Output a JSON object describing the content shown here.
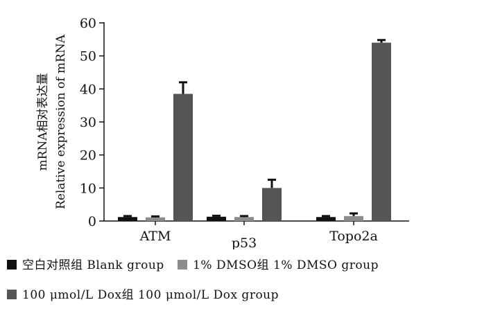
{
  "chart_data": {
    "type": "bar",
    "ylabel_lines": [
      "mRNA相对表达量",
      "Relative  expression  of  mRNA"
    ],
    "ylim": [
      0,
      60
    ],
    "yticks": [
      0,
      10,
      20,
      30,
      40,
      50,
      60
    ],
    "categories": [
      "ATM",
      "p53",
      "Topo2a"
    ],
    "series": [
      {
        "name": "空白对照组  Blank  group",
        "color": "#111111",
        "values": [
          1.2,
          1.3,
          1.2
        ],
        "errors": [
          0.3,
          0.3,
          0.3
        ]
      },
      {
        "name": "1%  DMSO组  1%  DMSO  group",
        "color": "#8c8c8c",
        "values": [
          1.1,
          1.2,
          1.5
        ],
        "errors": [
          0.3,
          0.3,
          0.8
        ]
      },
      {
        "name": "100  μmol/L  Dox组  100  μmol/L  Dox  group",
        "color": "#555555",
        "values": [
          38.5,
          10.0,
          54.0
        ],
        "errors": [
          3.5,
          2.5,
          0.8
        ]
      }
    ]
  }
}
